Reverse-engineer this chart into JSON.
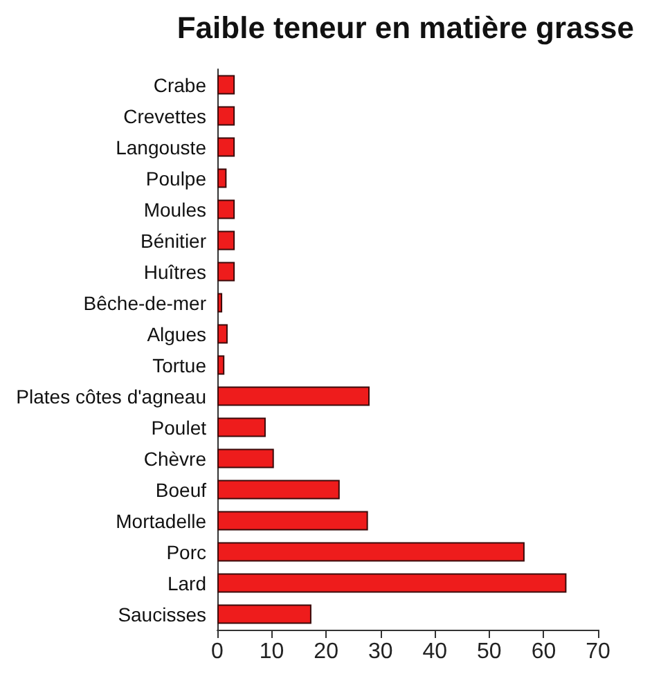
{
  "chart_data": {
    "type": "bar",
    "orientation": "horizontal",
    "title": "Faible teneur en matière grasse",
    "categories": [
      "Crabe",
      "Crevettes",
      "Langouste",
      "Poulpe",
      "Moules",
      "Bénitier",
      "Huîtres",
      "Bêche-de-mer",
      "Algues",
      "Tortue",
      "Plates côtes d'agneau",
      "Poulet",
      "Chèvre",
      "Boeuf",
      "Mortadelle",
      "Porc",
      "Lard",
      "Saucisses"
    ],
    "values": [
      3.2,
      3.2,
      3.2,
      1.7,
      3.2,
      3.2,
      3.2,
      0.9,
      1.9,
      1.3,
      28,
      8.9,
      10.4,
      22.5,
      27.7,
      56.5,
      64.2,
      17.3
    ],
    "color": "#ee1c1c",
    "xlim": [
      0,
      70
    ],
    "xticks": [
      0,
      10,
      20,
      30,
      40,
      50,
      60,
      70
    ],
    "grid": false
  }
}
